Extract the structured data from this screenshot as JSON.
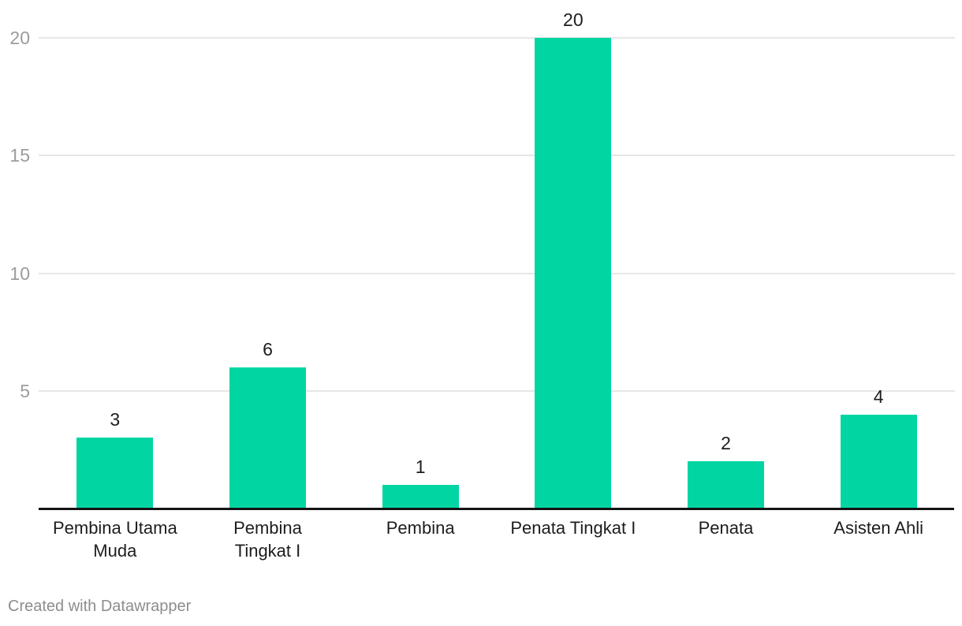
{
  "chart_data": {
    "type": "bar",
    "categories": [
      "Pembina Utama Muda",
      "Pembina Tingkat I",
      "Pembina",
      "Penata Tingkat I",
      "Penata",
      "Asisten Ahli"
    ],
    "category_lines": [
      [
        "Pembina Utama",
        "Muda"
      ],
      [
        "Pembina",
        "Tingkat I"
      ],
      [
        "Pembina"
      ],
      [
        "Penata Tingkat I"
      ],
      [
        "Penata"
      ],
      [
        "Asisten Ahli"
      ]
    ],
    "values": [
      3,
      6,
      1,
      20,
      2,
      4
    ],
    "value_labels": [
      "3",
      "6",
      "1",
      "20",
      "2",
      "4"
    ],
    "title": "",
    "xlabel": "",
    "ylabel": "",
    "ylim": [
      0,
      20
    ],
    "yticks": [
      5,
      10,
      15,
      20
    ],
    "grid": "horizontal",
    "legend": "none",
    "bar_color": "#01d6a3",
    "gridline_color": "#e7e7e7",
    "tick_label_color": "#9c9c9c",
    "axis_line_color": "#141414",
    "value_label_color": "#1d1d1d",
    "category_label_color": "#1d1d1d"
  },
  "footer": {
    "attribution": "Created with Datawrapper"
  }
}
